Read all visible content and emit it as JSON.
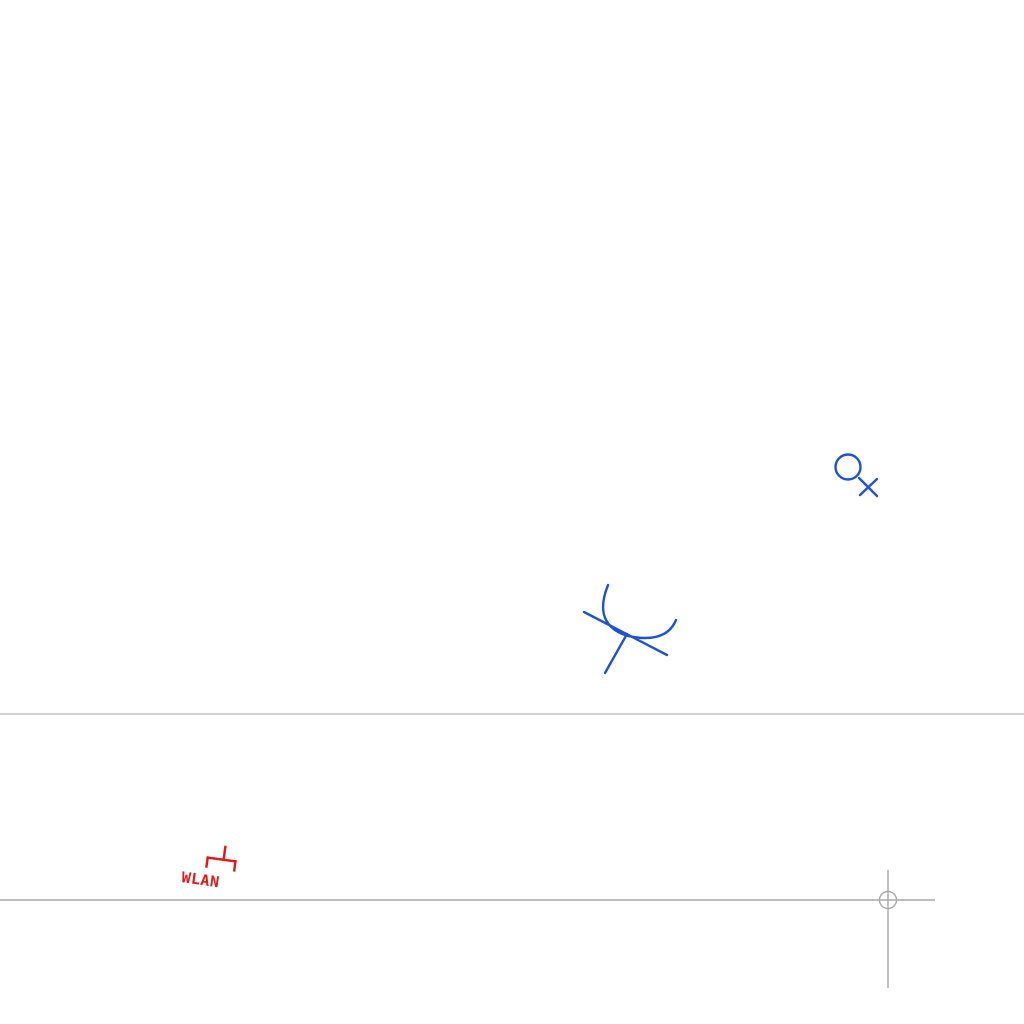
{
  "drawing": {
    "symbols": [
      {
        "name": "female-connector-symbol",
        "icon": "circle-with-cross-tail-icon",
        "color": "#1f52d6"
      },
      {
        "name": "bracket-tee-symbol",
        "icon": "arc-with-crossing-lines-icon",
        "color": "#1f52d6"
      },
      {
        "name": "wlan-antenna-symbol",
        "icon": "network-branch-icon",
        "color": "#e01818",
        "label": "WLAN"
      },
      {
        "name": "crosshair-marker",
        "icon": "crosshair-circle-icon",
        "color": "#a8a8a8"
      }
    ],
    "lines": [
      {
        "name": "horizontal-divider-line",
        "color": "#c4c4c4"
      },
      {
        "name": "horizontal-wire-line",
        "color": "#a8a8a8"
      },
      {
        "name": "vertical-wire-line",
        "color": "#a8a8a8"
      }
    ]
  }
}
